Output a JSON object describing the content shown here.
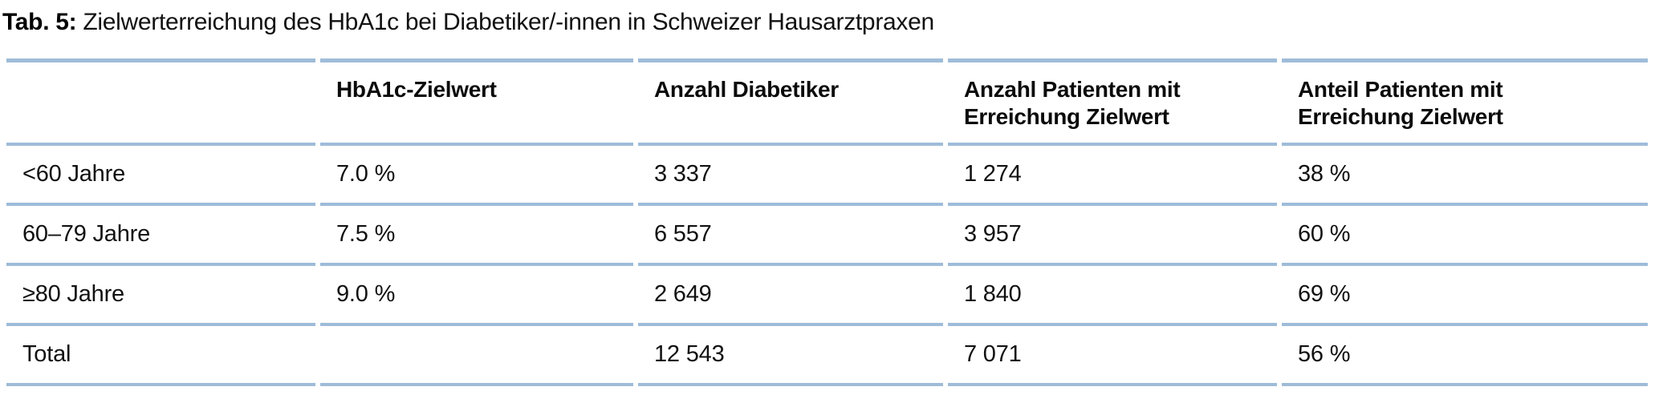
{
  "caption": {
    "label": "Tab. 5:",
    "text": "Zielwerterreichung des HbA1c bei Diabetiker/-innen in Schweizer Hausarztpraxen"
  },
  "table": {
    "columns": [
      {
        "line1": "",
        "line2": ""
      },
      {
        "line1": "HbA1c-Zielwert",
        "line2": ""
      },
      {
        "line1": "Anzahl Diabetiker",
        "line2": ""
      },
      {
        "line1": "Anzahl Patienten mit",
        "line2": "Erreichung Zielwert"
      },
      {
        "line1": "Anteil Patienten mit",
        "line2": "Erreichung Zielwert"
      }
    ],
    "rows": [
      {
        "cells": [
          "<60 Jahre",
          "7.0 %",
          "3 337",
          "1 274",
          "38 %"
        ]
      },
      {
        "cells": [
          "60–79 Jahre",
          "7.5 %",
          "6 557",
          "3 957",
          "60 %"
        ]
      },
      {
        "cells": [
          "≥80 Jahre",
          "9.0 %",
          "2 649",
          "1 840",
          "69 %"
        ]
      },
      {
        "cells": [
          "Total",
          "",
          "12 543",
          "7 071",
          "56 %"
        ]
      }
    ]
  },
  "colors": {
    "rule_blue": "#9ebcd9",
    "text": "#111111"
  },
  "chart_data": {
    "type": "table",
    "title": "Tab. 5: Zielwerterreichung des HbA1c bei Diabetiker/-innen in Schweizer Hausarztpraxen",
    "columns": [
      "",
      "HbA1c-Zielwert",
      "Anzahl Diabetiker",
      "Anzahl Patienten mit Erreichung Zielwert",
      "Anteil Patienten mit Erreichung Zielwert"
    ],
    "rows": [
      [
        "<60 Jahre",
        "7.0 %",
        "3 337",
        "1 274",
        "38 %"
      ],
      [
        "60–79 Jahre",
        "7.5 %",
        "6 557",
        "3 957",
        "60 %"
      ],
      [
        "≥80 Jahre",
        "9.0 %",
        "2 649",
        "1 840",
        "69 %"
      ],
      [
        "Total",
        "",
        "12 543",
        "7 071",
        "56 %"
      ]
    ]
  }
}
